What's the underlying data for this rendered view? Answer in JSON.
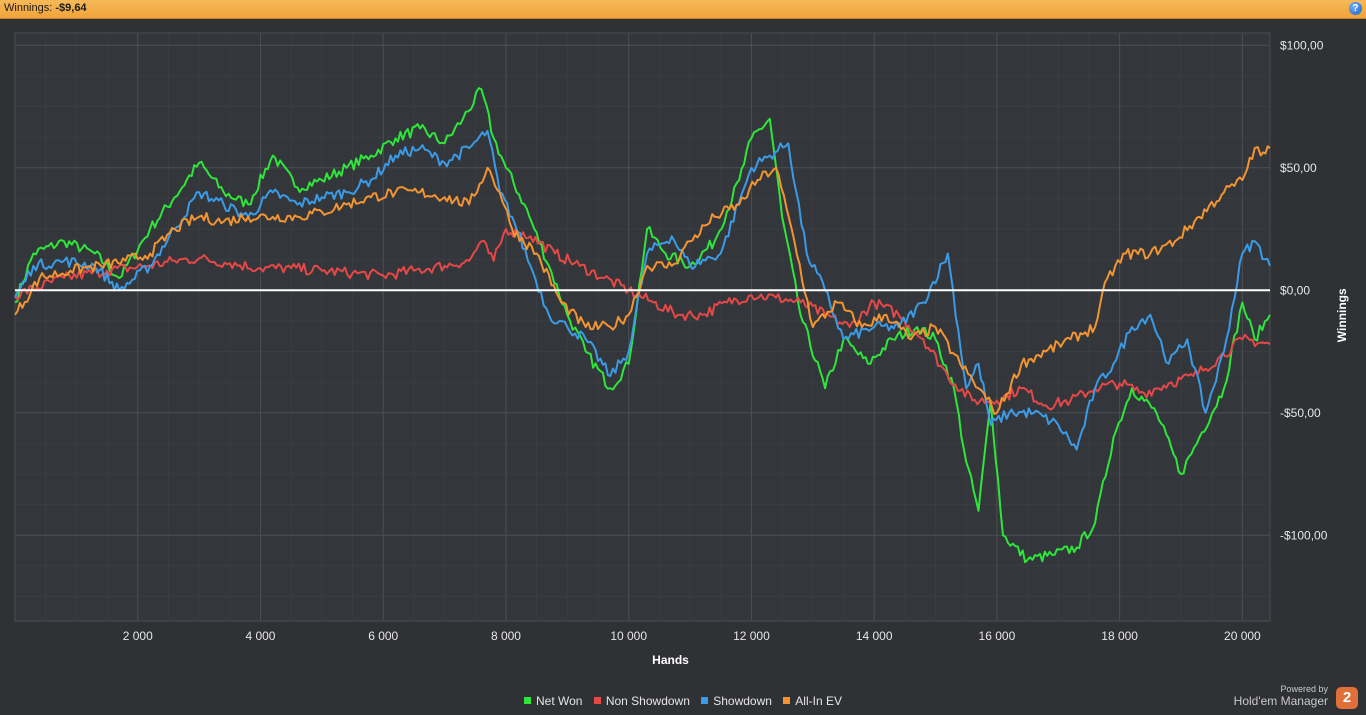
{
  "header": {
    "winnings_label": "Winnings:",
    "winnings_value": "-$9,64",
    "help_icon": "help-icon",
    "help_glyph": "?"
  },
  "legend": [
    {
      "name": "Net Won",
      "color": "#2ee63a"
    },
    {
      "name": "Non Showdown",
      "color": "#e64848"
    },
    {
      "name": "Showdown",
      "color": "#3b9be6"
    },
    {
      "name": "All-In EV",
      "color": "#f39432"
    }
  ],
  "branding": {
    "powered_by": "Powered by",
    "product": "Hold'em Manager",
    "logo_text": "2"
  },
  "chart_data": {
    "type": "line",
    "xlabel": "Hands",
    "ylabel": "Winnings",
    "xlim": [
      0,
      20450
    ],
    "ylim": [
      -135,
      105
    ],
    "x_ticks": [
      2000,
      4000,
      6000,
      8000,
      10000,
      12000,
      14000,
      16000,
      18000,
      20000
    ],
    "x_tick_labels": [
      "2 000",
      "4 000",
      "6 000",
      "8 000",
      "10 000",
      "12 000",
      "14 000",
      "16 000",
      "18 000",
      "20 000"
    ],
    "y_ticks": [
      100,
      50,
      0,
      -50,
      -100
    ],
    "y_tick_labels": [
      "$100,00",
      "$50,00",
      "$0,00",
      "-$50,00",
      "-$100,00"
    ],
    "grid": true,
    "zero_line": true,
    "legend_position": "bottom",
    "series": [
      {
        "name": "Net Won",
        "color": "#2ee63a",
        "x": [
          0,
          300,
          800,
          1300,
          1700,
          2200,
          2600,
          3000,
          3400,
          3800,
          4200,
          4600,
          5000,
          5400,
          5800,
          6200,
          6600,
          7000,
          7300,
          7600,
          7800,
          8000,
          8300,
          8700,
          9000,
          9300,
          9700,
          10000,
          10300,
          10600,
          11000,
          11400,
          11800,
          12000,
          12300,
          12500,
          12800,
          13200,
          13500,
          13900,
          14300,
          14700,
          15000,
          15300,
          15500,
          15700,
          15900,
          16100,
          16500,
          16900,
          17300,
          17600,
          17900,
          18200,
          18600,
          19000,
          19300,
          19700,
          20000,
          20200,
          20450
        ],
        "y": [
          -5,
          15,
          20,
          15,
          5,
          25,
          38,
          52,
          40,
          35,
          55,
          42,
          45,
          50,
          55,
          62,
          66,
          60,
          70,
          82,
          62,
          50,
          35,
          10,
          -10,
          -25,
          -40,
          -30,
          25,
          15,
          10,
          20,
          45,
          62,
          70,
          30,
          -10,
          -40,
          -20,
          -30,
          -20,
          -15,
          -20,
          -40,
          -70,
          -90,
          -45,
          -100,
          -110,
          -108,
          -105,
          -95,
          -60,
          -40,
          -50,
          -75,
          -60,
          -40,
          -5,
          -20,
          -10
        ]
      },
      {
        "name": "Non Showdown",
        "color": "#e64848",
        "x": [
          0,
          800,
          1500,
          2200,
          2600,
          3000,
          3500,
          4000,
          4500,
          5000,
          5500,
          6000,
          6500,
          7000,
          7400,
          7600,
          7800,
          8000,
          8400,
          8800,
          9200,
          9600,
          10000,
          10400,
          10800,
          11200,
          11600,
          12000,
          12400,
          12800,
          13200,
          13600,
          14000,
          14400,
          14800,
          15200,
          15600,
          16000,
          16400,
          16800,
          17200,
          17600,
          18000,
          18400,
          18800,
          19200,
          19600,
          20000,
          20450
        ],
        "y": [
          -2,
          5,
          8,
          10,
          12,
          13,
          11,
          9,
          9,
          8,
          7,
          6,
          8,
          10,
          12,
          20,
          12,
          25,
          22,
          15,
          10,
          5,
          0,
          -5,
          -10,
          -10,
          -5,
          -2,
          -3,
          -5,
          -10,
          -15,
          -5,
          -10,
          -20,
          -35,
          -45,
          -45,
          -40,
          -47,
          -45,
          -40,
          -38,
          -42,
          -38,
          -35,
          -28,
          -20,
          -22
        ]
      },
      {
        "name": "Showdown",
        "color": "#3b9be6",
        "x": [
          0,
          300,
          800,
          1300,
          1700,
          2200,
          2600,
          3000,
          3400,
          3800,
          4200,
          4600,
          5000,
          5400,
          5800,
          6200,
          6600,
          7000,
          7400,
          7700,
          7900,
          8100,
          8400,
          8700,
          9000,
          9300,
          9700,
          10000,
          10300,
          10700,
          11000,
          11500,
          12000,
          12300,
          12600,
          12900,
          13200,
          13500,
          14000,
          14400,
          14800,
          15200,
          15500,
          15700,
          15900,
          16200,
          16600,
          17000,
          17300,
          17600,
          17900,
          18200,
          18500,
          18800,
          19100,
          19400,
          19700,
          20000,
          20200,
          20450
        ],
        "y": [
          -3,
          10,
          12,
          10,
          0,
          10,
          25,
          40,
          35,
          30,
          40,
          35,
          38,
          40,
          45,
          55,
          58,
          52,
          58,
          65,
          40,
          30,
          10,
          -10,
          -15,
          -20,
          -35,
          -25,
          15,
          22,
          10,
          15,
          50,
          55,
          60,
          15,
          0,
          -20,
          -15,
          -15,
          -5,
          15,
          -40,
          -30,
          -55,
          -50,
          -50,
          -55,
          -65,
          -40,
          -30,
          -15,
          -10,
          -30,
          -20,
          -50,
          -25,
          15,
          20,
          10
        ]
      },
      {
        "name": "All-In EV",
        "color": "#f39432",
        "x": [
          0,
          400,
          900,
          1400,
          1800,
          2200,
          2600,
          3000,
          3400,
          3800,
          4200,
          4600,
          5000,
          5400,
          5800,
          6200,
          6600,
          7000,
          7400,
          7700,
          7900,
          8100,
          8500,
          8900,
          9300,
          9700,
          10000,
          10300,
          10700,
          11000,
          11400,
          11800,
          12100,
          12400,
          12700,
          13000,
          13400,
          13800,
          14200,
          14600,
          15000,
          15400,
          15700,
          16000,
          16400,
          16800,
          17200,
          17600,
          17800,
          18100,
          18500,
          18900,
          19300,
          19700,
          20000,
          20200,
          20300,
          20450
        ],
        "y": [
          -10,
          5,
          8,
          10,
          12,
          15,
          25,
          30,
          28,
          30,
          30,
          30,
          32,
          35,
          38,
          40,
          40,
          38,
          35,
          50,
          40,
          25,
          15,
          -5,
          -15,
          -15,
          -10,
          10,
          10,
          20,
          30,
          35,
          45,
          50,
          20,
          -15,
          -5,
          -15,
          -10,
          -20,
          -15,
          -30,
          -40,
          -50,
          -30,
          -25,
          -20,
          -15,
          5,
          15,
          15,
          20,
          30,
          40,
          45,
          58,
          55,
          58
        ]
      }
    ]
  }
}
